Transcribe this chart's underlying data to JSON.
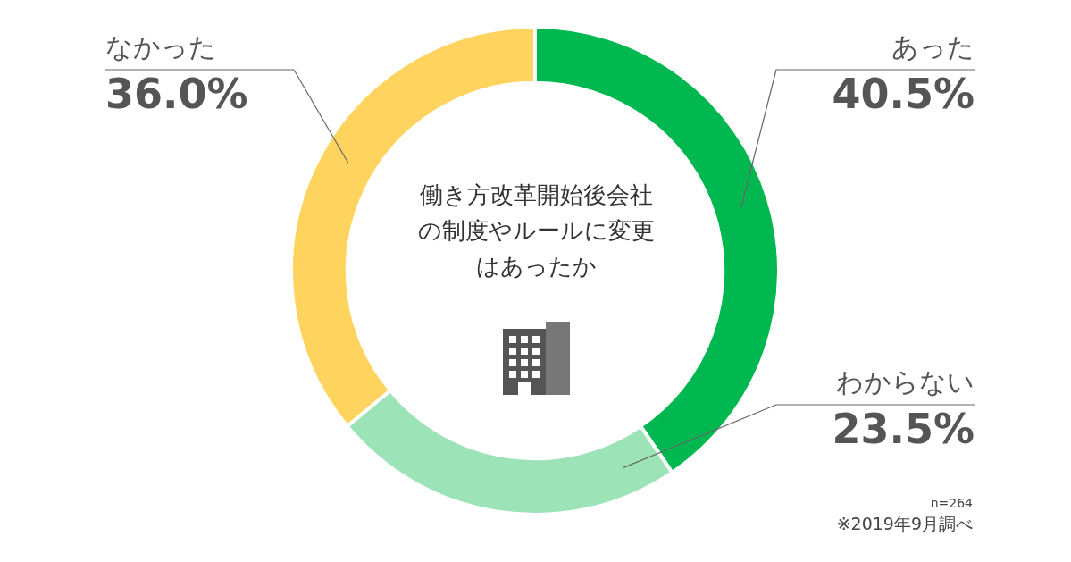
{
  "chart_data": {
    "type": "donut",
    "title": "働き方改革開始後会社の制度やルールに変更はあったか",
    "categories": [
      "あった",
      "わからない",
      "なかった"
    ],
    "values": [
      40.5,
      23.5,
      36.0
    ],
    "value_labels": [
      "40.5%",
      "23.5%",
      "36.0%"
    ],
    "colors": [
      "#00b84f",
      "#9de3b8",
      "#ffd45e"
    ],
    "legend": false,
    "annotations": [
      "n=264",
      "※2019年9月調べ"
    ]
  }
}
